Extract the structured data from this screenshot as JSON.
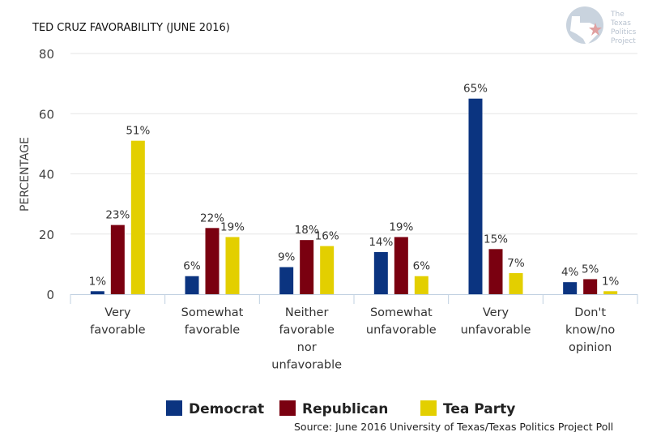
{
  "chart_data": {
    "type": "bar",
    "title": "TED CRUZ FAVORABILITY (JUNE 2016)",
    "xlabel": "",
    "ylabel": "PERCENTAGE",
    "ylim": [
      0,
      80
    ],
    "yticks": [
      0,
      20,
      40,
      60,
      80
    ],
    "grid": true,
    "legend_position": "bottom",
    "categories": [
      [
        "Very",
        "favorable"
      ],
      [
        "Somewhat",
        "favorable"
      ],
      [
        "Neither",
        "favorable",
        "nor",
        "unfavorable"
      ],
      [
        "Somewhat",
        "unfavorable"
      ],
      [
        "Very",
        "unfavorable"
      ],
      [
        "Don't",
        "know/no",
        "opinion"
      ]
    ],
    "series": [
      {
        "name": "Democrat",
        "color": "#0b3480",
        "values": [
          1,
          6,
          9,
          14,
          65,
          4
        ]
      },
      {
        "name": "Republican",
        "color": "#7a0010",
        "values": [
          23,
          22,
          18,
          19,
          15,
          5
        ]
      },
      {
        "name": "Tea Party",
        "color": "#e3cf00",
        "values": [
          51,
          19,
          16,
          6,
          7,
          1
        ]
      }
    ],
    "data_label_suffix": "%",
    "source": "Source: June 2016 University of Texas/Texas Politics Project Poll"
  },
  "logo": {
    "lines": [
      "The",
      "Texas",
      "Politics",
      "Project"
    ]
  },
  "colors": {
    "grid": "#e6e6e6",
    "axis": "#c0d0e0",
    "logo_shape": "#c9d3de",
    "logo_star": "#e0a0a0"
  }
}
